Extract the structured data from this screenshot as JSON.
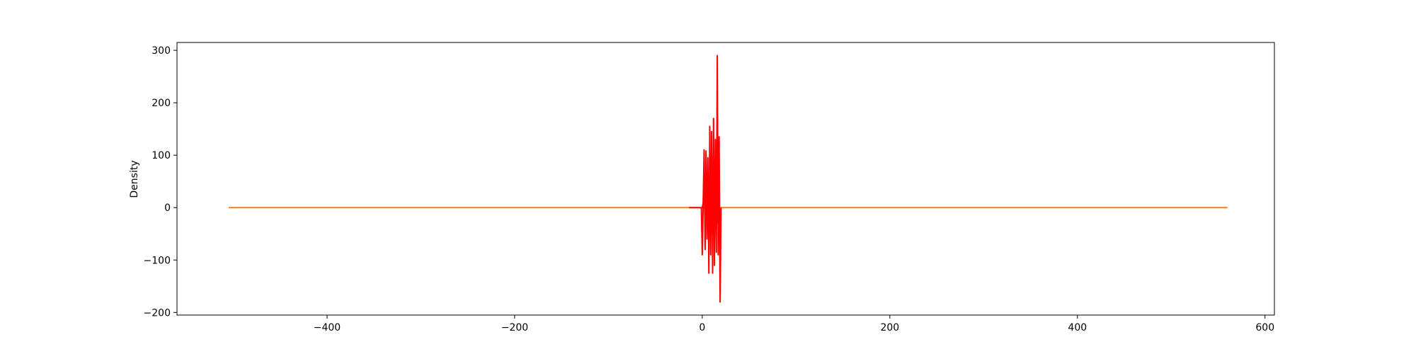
{
  "chart_data": {
    "type": "line",
    "title": "",
    "xlabel": "",
    "ylabel": "Density",
    "xlim": [
      -560,
      610
    ],
    "ylim": [
      -205,
      315
    ],
    "grid": false,
    "xticks": [
      -400,
      -200,
      0,
      200,
      400,
      600
    ],
    "xtick_labels": [
      "−400",
      "−200",
      "0",
      "200",
      "400",
      "600"
    ],
    "yticks": [
      -200,
      -100,
      0,
      100,
      200,
      300
    ],
    "ytick_labels": [
      "−200",
      "−100",
      "0",
      "100",
      "200",
      "300"
    ],
    "series": [
      {
        "color": "#ff7f0e",
        "x": [
          -505,
          560
        ],
        "y": [
          0,
          0
        ]
      },
      {
        "color": "#1f4e9a",
        "x": [
          0,
          2,
          4,
          6,
          8,
          10,
          12,
          14,
          16,
          18
        ],
        "y": [
          0,
          18,
          -20,
          25,
          -28,
          30,
          -25,
          65,
          -30,
          35
        ]
      },
      {
        "color": "#ff0000",
        "x": [
          -14,
          -1,
          0,
          2,
          3,
          4,
          5,
          6,
          7,
          8,
          9,
          10,
          11,
          12,
          13,
          14,
          15,
          16,
          17,
          18,
          19,
          20
        ],
        "y": [
          0,
          0,
          -90,
          110,
          -80,
          108,
          -60,
          95,
          -125,
          155,
          -90,
          145,
          -125,
          170,
          -110,
          130,
          -85,
          290,
          -90,
          135,
          -180,
          0
        ]
      }
    ]
  }
}
